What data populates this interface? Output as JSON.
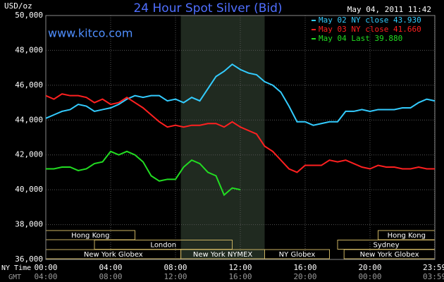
{
  "chart_data": {
    "type": "line",
    "title": "24 Hour Spot Silver (Bid)",
    "timestamp": "May 04, 2011 11:42",
    "y_label": "USD/oz",
    "watermark": "www.kitco.com",
    "x_label": "NY Time",
    "x2_label": "GMT",
    "xlim": [
      0,
      24
    ],
    "xticks": [
      {
        "value": 0,
        "label": "00:00"
      },
      {
        "value": 4,
        "label": "04:00"
      },
      {
        "value": 8,
        "label": "08:00"
      },
      {
        "value": 12,
        "label": "12:00"
      },
      {
        "value": 16,
        "label": "16:00"
      },
      {
        "value": 20,
        "label": "20:00"
      },
      {
        "value": 23.983,
        "label": "23:59"
      }
    ],
    "x2ticks": [
      {
        "value": 0,
        "label": "04:00"
      },
      {
        "value": 4,
        "label": "08:00"
      },
      {
        "value": 8,
        "label": "12:00"
      },
      {
        "value": 12,
        "label": "16:00"
      },
      {
        "value": 16,
        "label": "20:00"
      },
      {
        "value": 20,
        "label": "00:00"
      },
      {
        "value": 23.983,
        "label": "03:59"
      }
    ],
    "ylim": [
      36,
      50
    ],
    "yticks": [
      {
        "value": 36,
        "label": "36,000"
      },
      {
        "value": 38,
        "label": "38,000"
      },
      {
        "value": 40,
        "label": "40,000"
      },
      {
        "value": 42,
        "label": "42,000"
      },
      {
        "value": 44,
        "label": "44,000"
      },
      {
        "value": 46,
        "label": "46,000"
      },
      {
        "value": 48,
        "label": "48,000"
      },
      {
        "value": 50,
        "label": "50,000"
      }
    ],
    "grid": true,
    "shaded_x": [
      8.33,
      13.5
    ],
    "sessions": [
      {
        "name": "Hong Kong",
        "row": 0,
        "start": 0,
        "end": 5.5
      },
      {
        "name": "Hong Kong",
        "row": 0,
        "start": 20.5,
        "end": 24
      },
      {
        "name": "London",
        "row": 1,
        "start": 3,
        "end": 11.5
      },
      {
        "name": "Sydney",
        "row": 1,
        "start": 18,
        "end": 24
      },
      {
        "name": "New York Globex",
        "row": 2,
        "start": 0,
        "end": 8.33
      },
      {
        "name": "New York NYMEX",
        "row": 2,
        "start": 8.33,
        "end": 13.5
      },
      {
        "name": "NY Globex",
        "row": 2,
        "start": 13.5,
        "end": 17.5
      },
      {
        "name": "New York Globex",
        "row": 2,
        "start": 18.4,
        "end": 24
      }
    ],
    "series": [
      {
        "name": "May 02 NY close 43.930",
        "color": "#33ccff",
        "x": [
          0,
          0.5,
          1,
          1.5,
          2,
          2.5,
          3,
          3.5,
          4,
          4.5,
          5,
          5.5,
          6,
          6.5,
          7,
          7.5,
          8,
          8.5,
          9,
          9.5,
          10,
          10.5,
          11,
          11.5,
          12,
          12.5,
          13,
          13.5,
          14,
          14.5,
          15,
          15.5,
          16,
          16.5,
          17,
          17.5,
          18,
          18.5,
          19,
          19.5,
          20,
          20.5,
          21,
          21.5,
          22,
          22.5,
          23,
          23.5,
          24
        ],
        "values": [
          44.1,
          44.3,
          44.5,
          44.6,
          44.9,
          44.8,
          44.5,
          44.6,
          44.7,
          44.9,
          45.2,
          45.4,
          45.3,
          45.4,
          45.4,
          45.1,
          45.2,
          45.0,
          45.3,
          45.1,
          45.8,
          46.5,
          46.8,
          47.2,
          46.9,
          46.7,
          46.6,
          46.2,
          46.0,
          45.6,
          44.8,
          43.9,
          43.9,
          43.7,
          43.8,
          43.9,
          43.9,
          44.5,
          44.5,
          44.6,
          44.5,
          44.6,
          44.6,
          44.6,
          44.7,
          44.7,
          45.0,
          45.2,
          45.1
        ]
      },
      {
        "name": "May 03 NY close 41.660",
        "color": "#ff2020",
        "x": [
          0,
          0.5,
          1,
          1.5,
          2,
          2.5,
          3,
          3.5,
          4,
          4.5,
          5,
          5.5,
          6,
          6.5,
          7,
          7.5,
          8,
          8.5,
          9,
          9.5,
          10,
          10.5,
          11,
          11.5,
          12,
          12.5,
          13,
          13.5,
          14,
          14.5,
          15,
          15.5,
          16,
          16.5,
          17,
          17.5,
          18,
          18.5,
          19,
          19.5,
          20,
          20.5,
          21,
          21.5,
          22,
          22.5,
          23,
          23.5,
          24
        ],
        "values": [
          45.4,
          45.2,
          45.5,
          45.4,
          45.4,
          45.3,
          45.0,
          45.2,
          44.9,
          45.0,
          45.3,
          45.0,
          44.7,
          44.3,
          43.9,
          43.6,
          43.7,
          43.6,
          43.7,
          43.7,
          43.8,
          43.8,
          43.6,
          43.9,
          43.6,
          43.4,
          43.2,
          42.5,
          42.2,
          41.7,
          41.2,
          41.0,
          41.4,
          41.4,
          41.4,
          41.7,
          41.6,
          41.7,
          41.5,
          41.3,
          41.2,
          41.4,
          41.3,
          41.3,
          41.2,
          41.2,
          41.3,
          41.2,
          41.2
        ]
      },
      {
        "name": "May 04 Last 39.880",
        "color": "#22dd22",
        "x": [
          0,
          0.5,
          1,
          1.5,
          2,
          2.5,
          3,
          3.5,
          4,
          4.5,
          5,
          5.5,
          6,
          6.5,
          7,
          7.5,
          8,
          8.5,
          9,
          9.5,
          10,
          10.5,
          11,
          11.5,
          12
        ],
        "values": [
          41.2,
          41.2,
          41.3,
          41.3,
          41.1,
          41.2,
          41.5,
          41.6,
          42.2,
          42.0,
          42.2,
          42.0,
          41.6,
          40.8,
          40.5,
          40.6,
          40.6,
          41.3,
          41.7,
          41.5,
          41.0,
          40.8,
          39.7,
          40.1,
          40.0
        ]
      }
    ]
  }
}
